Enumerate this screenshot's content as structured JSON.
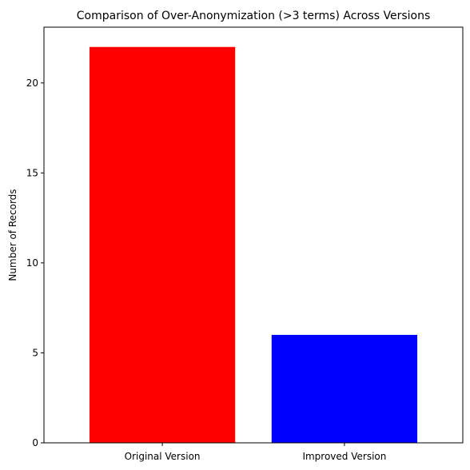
{
  "chart_data": {
    "type": "bar",
    "title": "Comparison of Over-Anonymization (>3 terms) Across Versions",
    "xlabel": "",
    "ylabel": "Number of Records",
    "categories": [
      "Original Version",
      "Improved Version"
    ],
    "values": [
      22,
      6
    ],
    "colors": [
      "#ff0000",
      "#0000ff"
    ],
    "ylim": [
      0,
      23.1
    ],
    "yticks": [
      0,
      5,
      10,
      15,
      20
    ],
    "grid": false,
    "legend": "none"
  }
}
